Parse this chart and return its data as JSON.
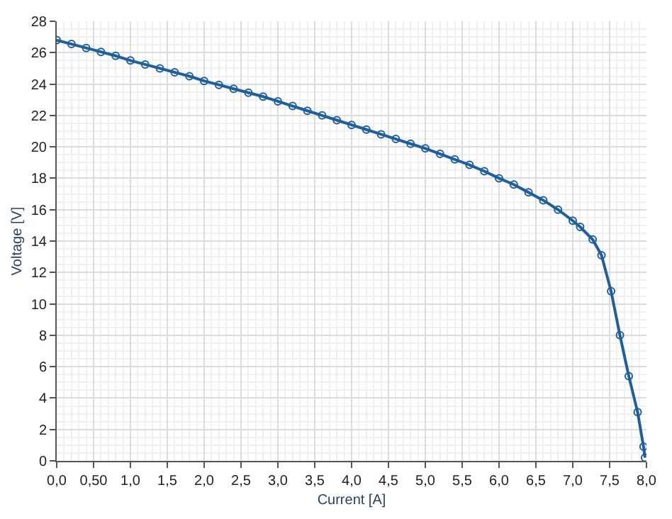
{
  "chart_data": {
    "type": "line",
    "xlabel": "Current [A]",
    "ylabel": "Voltage [V]",
    "x": [
      0.0,
      0.2,
      0.4,
      0.6,
      0.8,
      1.0,
      1.2,
      1.4,
      1.6,
      1.8,
      2.0,
      2.2,
      2.4,
      2.6,
      2.8,
      3.0,
      3.2,
      3.4,
      3.6,
      3.8,
      4.0,
      4.2,
      4.4,
      4.6,
      4.8,
      5.0,
      5.2,
      5.4,
      5.6,
      5.8,
      6.0,
      6.2,
      6.4,
      6.6,
      6.8,
      7.0,
      7.1,
      7.27,
      7.39,
      7.52,
      7.64,
      7.76,
      7.88,
      7.96,
      7.98
    ],
    "series": [
      {
        "color": "#1f5f9a",
        "values": [
          26.8,
          26.55,
          26.3,
          26.05,
          25.8,
          25.5,
          25.25,
          25.0,
          24.75,
          24.5,
          24.2,
          23.95,
          23.7,
          23.45,
          23.2,
          22.9,
          22.6,
          22.3,
          22.0,
          21.7,
          21.4,
          21.1,
          20.8,
          20.5,
          20.2,
          19.9,
          19.55,
          19.2,
          18.85,
          18.45,
          18.0,
          17.6,
          17.1,
          16.6,
          16.0,
          15.3,
          14.9,
          14.1,
          13.1,
          10.8,
          8.0,
          5.4,
          3.1,
          0.9,
          0.2
        ]
      }
    ],
    "xlim": [
      0,
      8
    ],
    "ylim": [
      0,
      28
    ],
    "xticks": [
      {
        "value": 0,
        "label": "0,0"
      },
      {
        "value": 0.5,
        "label": "0,50"
      },
      {
        "value": 1,
        "label": "1,0"
      },
      {
        "value": 1.5,
        "label": "1,5"
      },
      {
        "value": 2,
        "label": "2,0"
      },
      {
        "value": 2.5,
        "label": "2,5"
      },
      {
        "value": 3,
        "label": "3,0"
      },
      {
        "value": 3.5,
        "label": "3,5"
      },
      {
        "value": 4,
        "label": "4,0"
      },
      {
        "value": 4.5,
        "label": "4,5"
      },
      {
        "value": 5,
        "label": "5,0"
      },
      {
        "value": 5.5,
        "label": "5,5"
      },
      {
        "value": 6,
        "label": "6,0"
      },
      {
        "value": 6.5,
        "label": "6,5"
      },
      {
        "value": 7,
        "label": "7,0"
      },
      {
        "value": 7.5,
        "label": "7,5"
      },
      {
        "value": 8,
        "label": "8,0"
      }
    ],
    "yticks": [
      0,
      2,
      4,
      6,
      8,
      10,
      12,
      14,
      16,
      18,
      20,
      22,
      24,
      26,
      28
    ],
    "grid": true,
    "marker": "circle",
    "line_style": "solid",
    "legend": false
  }
}
